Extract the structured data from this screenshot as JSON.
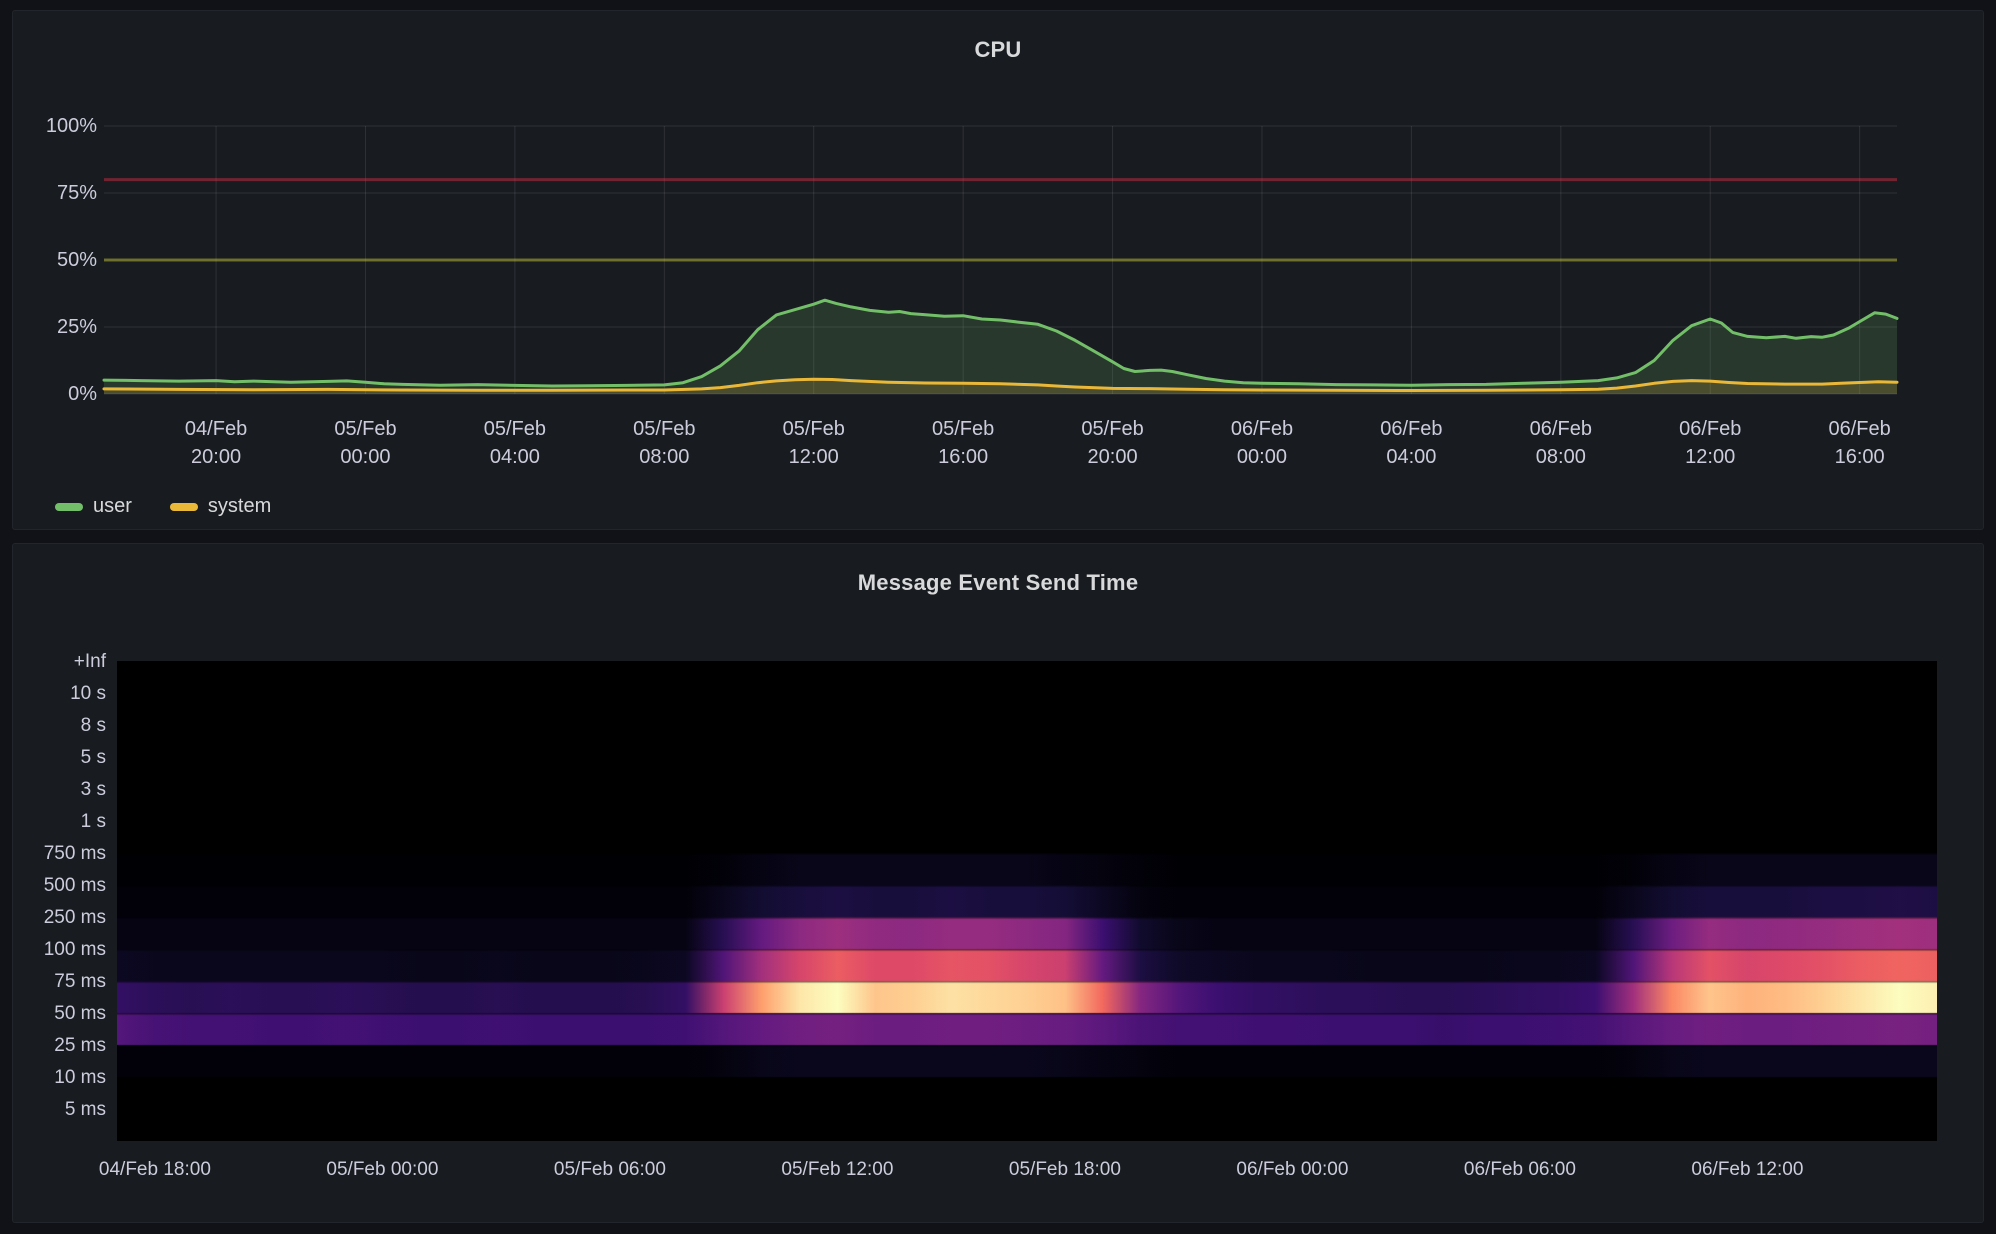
{
  "chart_data": [
    {
      "type": "area",
      "title": "CPU",
      "unit": "percent",
      "ylim": [
        0,
        100
      ],
      "y_ticks": [
        {
          "value": 0,
          "label": "0%"
        },
        {
          "value": 25,
          "label": "25%"
        },
        {
          "value": 50,
          "label": "50%"
        },
        {
          "value": 75,
          "label": "75%"
        },
        {
          "value": 100,
          "label": "100%"
        }
      ],
      "x_span_hours": 48,
      "x_start": "04/Feb 17:00",
      "x_end": "06/Feb 17:00",
      "x_ticks": [
        {
          "t": 3,
          "date": "04/Feb",
          "time": "20:00"
        },
        {
          "t": 7,
          "date": "05/Feb",
          "time": "00:00"
        },
        {
          "t": 11,
          "date": "05/Feb",
          "time": "04:00"
        },
        {
          "t": 15,
          "date": "05/Feb",
          "time": "08:00"
        },
        {
          "t": 19,
          "date": "05/Feb",
          "time": "12:00"
        },
        {
          "t": 23,
          "date": "05/Feb",
          "time": "16:00"
        },
        {
          "t": 27,
          "date": "05/Feb",
          "time": "20:00"
        },
        {
          "t": 31,
          "date": "06/Feb",
          "time": "00:00"
        },
        {
          "t": 35,
          "date": "06/Feb",
          "time": "04:00"
        },
        {
          "t": 39,
          "date": "06/Feb",
          "time": "08:00"
        },
        {
          "t": 43,
          "date": "06/Feb",
          "time": "12:00"
        },
        {
          "t": 47,
          "date": "06/Feb",
          "time": "16:00"
        }
      ],
      "thresholds": [
        {
          "value": 80,
          "color": "#E02F44",
          "opacity": 0.45
        },
        {
          "value": 50,
          "color": "#CCCC33",
          "opacity": 0.45
        }
      ],
      "legend_position": "bottom-left",
      "grid": true,
      "series": [
        {
          "name": "user",
          "color": "#73BF69",
          "fill_opacity": 0.18,
          "points": [
            [
              0,
              5.2
            ],
            [
              1,
              5
            ],
            [
              2,
              4.8
            ],
            [
              3,
              5
            ],
            [
              3.5,
              4.6
            ],
            [
              4,
              4.8
            ],
            [
              5,
              4.4
            ],
            [
              6,
              4.7
            ],
            [
              6.5,
              4.9
            ],
            [
              7,
              4.4
            ],
            [
              7.5,
              3.8
            ],
            [
              8,
              3.6
            ],
            [
              9,
              3.3
            ],
            [
              10,
              3.5
            ],
            [
              11,
              3.2
            ],
            [
              12,
              3
            ],
            [
              13,
              3.1
            ],
            [
              14,
              3.2
            ],
            [
              15,
              3.4
            ],
            [
              15.5,
              4.2
            ],
            [
              16,
              6.5
            ],
            [
              16.5,
              10.5
            ],
            [
              17,
              16
            ],
            [
              17.5,
              24
            ],
            [
              18,
              29.5
            ],
            [
              18.5,
              31.5
            ],
            [
              19,
              33.5
            ],
            [
              19.3,
              35
            ],
            [
              19.6,
              33.8
            ],
            [
              20,
              32.5
            ],
            [
              20.5,
              31.2
            ],
            [
              21,
              30.5
            ],
            [
              21.3,
              30.8
            ],
            [
              21.6,
              30
            ],
            [
              22,
              29.6
            ],
            [
              22.5,
              29
            ],
            [
              23,
              29.2
            ],
            [
              23.5,
              28
            ],
            [
              24,
              27.6
            ],
            [
              24.5,
              26.8
            ],
            [
              25,
              26
            ],
            [
              25.5,
              23.5
            ],
            [
              26,
              20
            ],
            [
              26.5,
              16
            ],
            [
              27,
              12
            ],
            [
              27.3,
              9.5
            ],
            [
              27.6,
              8.4
            ],
            [
              28,
              8.8
            ],
            [
              28.3,
              8.9
            ],
            [
              28.6,
              8.4
            ],
            [
              29,
              7.2
            ],
            [
              29.5,
              5.8
            ],
            [
              30,
              4.8
            ],
            [
              30.5,
              4.2
            ],
            [
              31,
              4
            ],
            [
              32,
              3.8
            ],
            [
              33,
              3.5
            ],
            [
              34,
              3.4
            ],
            [
              35,
              3.3
            ],
            [
              36,
              3.5
            ],
            [
              37,
              3.6
            ],
            [
              38,
              4
            ],
            [
              39,
              4.4
            ],
            [
              40,
              5
            ],
            [
              40.5,
              6
            ],
            [
              41,
              8
            ],
            [
              41.5,
              12.5
            ],
            [
              42,
              20
            ],
            [
              42.5,
              25.5
            ],
            [
              43,
              28
            ],
            [
              43.3,
              26.5
            ],
            [
              43.6,
              23
            ],
            [
              44,
              21.5
            ],
            [
              44.5,
              21
            ],
            [
              45,
              21.5
            ],
            [
              45.3,
              20.8
            ],
            [
              45.7,
              21.4
            ],
            [
              46,
              21.2
            ],
            [
              46.3,
              22
            ],
            [
              46.7,
              24.5
            ],
            [
              47,
              27
            ],
            [
              47.4,
              30.3
            ],
            [
              47.7,
              29.8
            ],
            [
              48,
              28.2
            ]
          ]
        },
        {
          "name": "system",
          "color": "#EAB839",
          "fill_opacity": 0.18,
          "points": [
            [
              0,
              1.9
            ],
            [
              2,
              1.7
            ],
            [
              4,
              1.6
            ],
            [
              6,
              1.7
            ],
            [
              8,
              1.5
            ],
            [
              10,
              1.4
            ],
            [
              12,
              1.4
            ],
            [
              14,
              1.5
            ],
            [
              15,
              1.5
            ],
            [
              16,
              1.9
            ],
            [
              16.5,
              2.4
            ],
            [
              17,
              3.2
            ],
            [
              17.5,
              4.2
            ],
            [
              18,
              4.9
            ],
            [
              18.5,
              5.3
            ],
            [
              19,
              5.5
            ],
            [
              19.5,
              5.4
            ],
            [
              20,
              5
            ],
            [
              21,
              4.4
            ],
            [
              22,
              4.1
            ],
            [
              23,
              4
            ],
            [
              24,
              3.8
            ],
            [
              25,
              3.4
            ],
            [
              25.5,
              3
            ],
            [
              26,
              2.6
            ],
            [
              27,
              2.1
            ],
            [
              28,
              2
            ],
            [
              29,
              1.8
            ],
            [
              30,
              1.6
            ],
            [
              31,
              1.5
            ],
            [
              33,
              1.4
            ],
            [
              35,
              1.3
            ],
            [
              37,
              1.4
            ],
            [
              39,
              1.6
            ],
            [
              40,
              1.8
            ],
            [
              40.5,
              2.2
            ],
            [
              41,
              3
            ],
            [
              41.5,
              4
            ],
            [
              42,
              4.7
            ],
            [
              42.5,
              5
            ],
            [
              43,
              4.8
            ],
            [
              43.5,
              4.3
            ],
            [
              44,
              3.9
            ],
            [
              45,
              3.7
            ],
            [
              46,
              3.7
            ],
            [
              46.5,
              4
            ],
            [
              47,
              4.3
            ],
            [
              47.5,
              4.6
            ],
            [
              48,
              4.4
            ]
          ]
        }
      ]
    },
    {
      "type": "heatmap",
      "title": "Message Event Send Time",
      "y_buckets": [
        "+Inf",
        "10 s",
        "8 s",
        "5 s",
        "3 s",
        "1 s",
        "750 ms",
        "500 ms",
        "250 ms",
        "100 ms",
        "75 ms",
        "50 ms",
        "25 ms",
        "10 ms",
        "5 ms"
      ],
      "n_bands": 15,
      "x_span_hours": 48,
      "x_start": "04/Feb 17:00",
      "x_end": "06/Feb 17:00",
      "x_ticks": [
        {
          "t": 1,
          "label": "04/Feb 18:00"
        },
        {
          "t": 7,
          "label": "05/Feb 00:00"
        },
        {
          "t": 13,
          "label": "05/Feb 06:00"
        },
        {
          "t": 19,
          "label": "05/Feb 12:00"
        },
        {
          "t": 25,
          "label": "05/Feb 18:00"
        },
        {
          "t": 31,
          "label": "06/Feb 00:00"
        },
        {
          "t": 37,
          "label": "06/Feb 06:00"
        },
        {
          "t": 43,
          "label": "06/Feb 12:00"
        }
      ],
      "colormap": [
        [
          0,
          "#000004"
        ],
        [
          0.1,
          "#140e36"
        ],
        [
          0.2,
          "#3b0f70"
        ],
        [
          0.3,
          "#641a80"
        ],
        [
          0.4,
          "#8c2981"
        ],
        [
          0.5,
          "#b73779"
        ],
        [
          0.6,
          "#de4968"
        ],
        [
          0.7,
          "#f7705c"
        ],
        [
          0.8,
          "#fe9f6d"
        ],
        [
          0.9,
          "#fecf92"
        ],
        [
          1,
          "#fcfdbf"
        ]
      ],
      "rows": [
        {
          "band_index": 6,
          "bucket": "750 ms - 500 ms",
          "values": [
            0,
            0,
            0,
            0,
            0,
            0,
            0,
            0,
            0,
            0,
            0,
            0,
            0,
            0,
            0,
            0,
            0.01,
            0.03,
            0.04,
            0.04,
            0.04,
            0.04,
            0.04,
            0.04,
            0.04,
            0.03,
            0.02,
            0.01,
            0,
            0,
            0,
            0,
            0,
            0,
            0,
            0,
            0,
            0,
            0,
            0,
            0.01,
            0.03,
            0.04,
            0.04,
            0.04,
            0.04,
            0.04,
            0.04,
            0.04
          ]
        },
        {
          "band_index": 7,
          "bucket": "500 ms - 250 ms",
          "values": [
            0.01,
            0.01,
            0.01,
            0.01,
            0.01,
            0.01,
            0.01,
            0.01,
            0.01,
            0.01,
            0.01,
            0.01,
            0.01,
            0.01,
            0.01,
            0.01,
            0.05,
            0.09,
            0.11,
            0.12,
            0.11,
            0.11,
            0.12,
            0.11,
            0.11,
            0.1,
            0.06,
            0.02,
            0.01,
            0.01,
            0.01,
            0.01,
            0.01,
            0.01,
            0.01,
            0.01,
            0.01,
            0.01,
            0.01,
            0.01,
            0.05,
            0.09,
            0.11,
            0.11,
            0.11,
            0.12,
            0.12,
            0.13,
            0.12
          ]
        },
        {
          "band_index": 8,
          "bucket": "250 ms - 100 ms",
          "values": [
            0.03,
            0.03,
            0.03,
            0.03,
            0.03,
            0.03,
            0.03,
            0.03,
            0.03,
            0.03,
            0.03,
            0.03,
            0.03,
            0.03,
            0.03,
            0.03,
            0.15,
            0.3,
            0.4,
            0.44,
            0.41,
            0.4,
            0.42,
            0.42,
            0.4,
            0.38,
            0.2,
            0.08,
            0.04,
            0.03,
            0.03,
            0.03,
            0.03,
            0.03,
            0.03,
            0.03,
            0.03,
            0.03,
            0.03,
            0.03,
            0.15,
            0.32,
            0.42,
            0.4,
            0.41,
            0.42,
            0.44,
            0.45,
            0.44
          ]
        },
        {
          "band_index": 9,
          "bucket": "100 ms - 75 ms",
          "values": [
            0.06,
            0.05,
            0.05,
            0.05,
            0.05,
            0.05,
            0.05,
            0.05,
            0.04,
            0.04,
            0.05,
            0.04,
            0.04,
            0.04,
            0.05,
            0.06,
            0.25,
            0.45,
            0.58,
            0.65,
            0.6,
            0.6,
            0.63,
            0.62,
            0.58,
            0.55,
            0.3,
            0.12,
            0.07,
            0.06,
            0.05,
            0.05,
            0.05,
            0.04,
            0.04,
            0.04,
            0.04,
            0.05,
            0.05,
            0.06,
            0.25,
            0.5,
            0.62,
            0.58,
            0.6,
            0.62,
            0.65,
            0.67,
            0.66
          ]
        },
        {
          "band_index": 10,
          "bucket": "75 ms - 50 ms",
          "values": [
            0.18,
            0.16,
            0.15,
            0.16,
            0.15,
            0.15,
            0.16,
            0.15,
            0.14,
            0.14,
            0.15,
            0.14,
            0.14,
            0.14,
            0.15,
            0.18,
            0.55,
            0.8,
            0.95,
            1.0,
            0.88,
            0.9,
            0.94,
            0.92,
            0.9,
            0.87,
            0.68,
            0.38,
            0.26,
            0.2,
            0.18,
            0.17,
            0.16,
            0.16,
            0.15,
            0.15,
            0.16,
            0.17,
            0.18,
            0.2,
            0.45,
            0.75,
            0.88,
            0.84,
            0.86,
            0.9,
            0.95,
            1.0,
            0.97
          ]
        },
        {
          "band_index": 11,
          "bucket": "50 ms - 25 ms",
          "values": [
            0.26,
            0.23,
            0.22,
            0.22,
            0.21,
            0.21,
            0.22,
            0.21,
            0.2,
            0.2,
            0.21,
            0.2,
            0.2,
            0.2,
            0.2,
            0.21,
            0.26,
            0.3,
            0.33,
            0.34,
            0.32,
            0.32,
            0.33,
            0.33,
            0.32,
            0.31,
            0.28,
            0.24,
            0.22,
            0.22,
            0.21,
            0.21,
            0.2,
            0.2,
            0.2,
            0.19,
            0.2,
            0.2,
            0.21,
            0.22,
            0.27,
            0.31,
            0.33,
            0.32,
            0.32,
            0.33,
            0.34,
            0.35,
            0.34
          ]
        },
        {
          "band_index": 12,
          "bucket": "25 ms - 10 ms",
          "values": [
            0.01,
            0.01,
            0.01,
            0.01,
            0.01,
            0.01,
            0.01,
            0.01,
            0.01,
            0.01,
            0.01,
            0.01,
            0.01,
            0.01,
            0.01,
            0.01,
            0.02,
            0.04,
            0.05,
            0.05,
            0.05,
            0.05,
            0.05,
            0.05,
            0.05,
            0.04,
            0.03,
            0.02,
            0.01,
            0.01,
            0.01,
            0.01,
            0.01,
            0.01,
            0.01,
            0.01,
            0.01,
            0.01,
            0.01,
            0.01,
            0.02,
            0.04,
            0.05,
            0.05,
            0.05,
            0.05,
            0.05,
            0.05,
            0.05
          ]
        }
      ]
    }
  ]
}
